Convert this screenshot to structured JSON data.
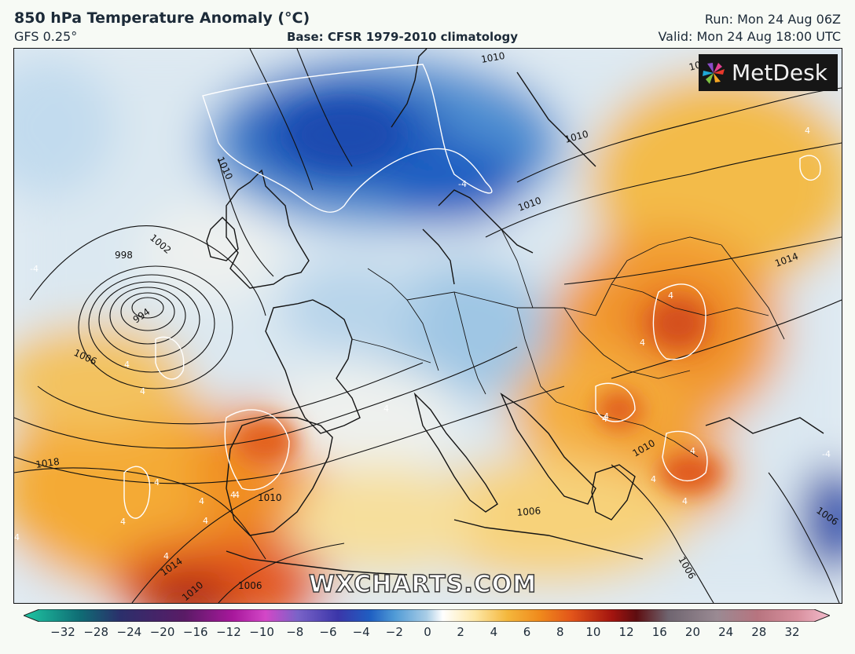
{
  "header": {
    "title": "850 hPa Temperature Anomaly (°C)",
    "model": "GFS 0.25°",
    "base": "Base: CFSR 1979-2010 climatology",
    "run": "Run: Mon 24 Aug 06Z",
    "valid": "Valid: Mon 24 Aug 18:00 UTC"
  },
  "logo": {
    "name": "MetDesk",
    "icon": "pinwheel-icon"
  },
  "watermark": "WXCHARTS.COM",
  "map": {
    "isobar_labels": [
      "1002",
      "998",
      "994",
      "1006",
      "1010",
      "1010",
      "1010",
      "1010",
      "1014",
      "1014",
      "1018",
      "1010",
      "1010",
      "1010",
      "1006",
      "1006",
      "1006",
      "1014",
      "1006"
    ],
    "anomaly_labels": [
      "-4",
      "-4",
      "-4",
      "4",
      "4",
      "4",
      "4",
      "4",
      "4",
      "4",
      "4",
      "4",
      "4",
      "4",
      "4",
      "4",
      "4",
      "4",
      "4",
      "4",
      "4",
      "4"
    ]
  },
  "colorbar": {
    "ticks": [
      "−32",
      "−28",
      "−24",
      "−20",
      "−16",
      "−12",
      "−10",
      "−8",
      "−6",
      "−4",
      "−2",
      "0",
      "2",
      "4",
      "6",
      "8",
      "10",
      "12",
      "16",
      "20",
      "24",
      "28",
      "32"
    ],
    "colors": [
      "#1fc7a3",
      "#0f6c74",
      "#2b2f6b",
      "#5a1b66",
      "#a8189c",
      "#d347c7",
      "#7a63c8",
      "#3b36a9",
      "#1f5fc2",
      "#4f9ad6",
      "#a9cde6",
      "#ffffff",
      "#fde7a6",
      "#f4b73c",
      "#f08a1c",
      "#e2541a",
      "#a3140f",
      "#5e0d10",
      "#6f6570",
      "#9a8a93",
      "#b7747f",
      "#d8909e",
      "#f3bccc"
    ]
  }
}
